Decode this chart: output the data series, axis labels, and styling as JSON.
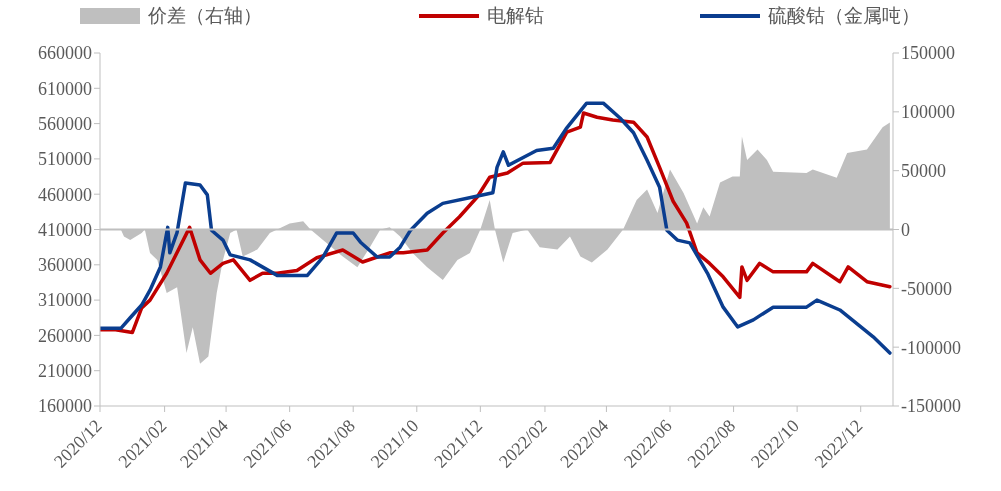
{
  "chart_data": {
    "type": "line",
    "legend": "top",
    "xlim": [
      "2020-12-01",
      "2023-01-01"
    ],
    "xticks": [
      {
        "value": "2020-12-01",
        "label": "2020/12"
      },
      {
        "value": "2021-02-01",
        "label": "2021/02"
      },
      {
        "value": "2021-04-01",
        "label": "2021/04"
      },
      {
        "value": "2021-06-01",
        "label": "2021/06"
      },
      {
        "value": "2021-08-01",
        "label": "2021/08"
      },
      {
        "value": "2021-10-01",
        "label": "2021/10"
      },
      {
        "value": "2021-12-01",
        "label": "2021/12"
      },
      {
        "value": "2022-02-01",
        "label": "2022/02"
      },
      {
        "value": "2022-04-01",
        "label": "2022/04"
      },
      {
        "value": "2022-06-01",
        "label": "2022/06"
      },
      {
        "value": "2022-08-01",
        "label": "2022/08"
      },
      {
        "value": "2022-10-01",
        "label": "2022/10"
      },
      {
        "value": "2022-12-01",
        "label": "2022/12"
      }
    ],
    "ylim": [
      160000,
      660000
    ],
    "yticks": [
      160000,
      210000,
      260000,
      310000,
      360000,
      410000,
      460000,
      510000,
      560000,
      610000,
      660000
    ],
    "y2lim": [
      -150000,
      150000
    ],
    "y2ticks": [
      -150000,
      -100000,
      -50000,
      0,
      50000,
      100000,
      150000
    ],
    "ref_lines": [
      {
        "axis": "y2",
        "value": 0,
        "color": "#bfbfbf"
      }
    ],
    "series": [
      {
        "name": "价差（右轴）",
        "type": "area",
        "axis": "y2",
        "color": "#bfbfbf",
        "x": [
          "2020-12-01",
          "2020-12-21",
          "2020-12-24",
          "2020-12-30",
          "2021-01-10",
          "2021-01-13",
          "2021-01-18",
          "2021-01-25",
          "2021-02-03",
          "2021-02-13",
          "2021-02-22",
          "2021-02-28",
          "2021-03-07",
          "2021-03-15",
          "2021-03-23",
          "2021-03-29",
          "2021-04-05",
          "2021-04-11",
          "2021-04-17",
          "2021-05-01",
          "2021-05-13",
          "2021-05-20",
          "2021-06-01",
          "2021-06-14",
          "2021-06-21",
          "2021-07-03",
          "2021-07-22",
          "2021-08-05",
          "2021-08-17",
          "2021-08-27",
          "2021-09-05",
          "2021-09-15",
          "2021-09-27",
          "2021-10-11",
          "2021-10-26",
          "2021-11-09",
          "2021-11-21",
          "2021-12-01",
          "2021-12-10",
          "2021-12-15",
          "2021-12-23",
          "2022-01-01",
          "2022-01-15",
          "2022-01-27",
          "2022-02-13",
          "2022-02-25",
          "2022-03-07",
          "2022-03-18",
          "2022-04-02",
          "2022-04-17",
          "2022-04-30",
          "2022-05-10",
          "2022-05-20",
          "2022-06-01",
          "2022-06-14",
          "2022-06-27",
          "2022-07-03",
          "2022-07-09",
          "2022-07-19",
          "2022-07-31",
          "2022-08-07",
          "2022-08-09",
          "2022-08-14",
          "2022-08-24",
          "2022-09-02",
          "2022-09-08",
          "2022-10-10",
          "2022-10-16",
          "2022-11-08",
          "2022-11-18",
          "2022-12-07",
          "2022-12-22",
          "2022-12-29"
        ],
        "values": [
          0,
          0,
          -6000,
          -9000,
          -3000,
          0,
          -20000,
          -26000,
          -54000,
          -49000,
          -105000,
          -83000,
          -114000,
          -108000,
          -54000,
          -26000,
          -3000,
          0,
          -23000,
          -17000,
          -3000,
          0,
          5000,
          7000,
          0,
          -9000,
          -23000,
          -32000,
          -15000,
          0,
          2000,
          -6000,
          -20000,
          -32000,
          -43000,
          -26000,
          -20000,
          0,
          25000,
          0,
          -28000,
          -3000,
          0,
          -15000,
          -17000,
          -6000,
          -23000,
          -28000,
          -17000,
          0,
          25000,
          34000,
          14000,
          51000,
          31000,
          5000,
          19000,
          11000,
          40000,
          45000,
          45000,
          79000,
          59000,
          68000,
          59000,
          49000,
          48000,
          51000,
          44000,
          65000,
          68000,
          87000,
          91000
        ]
      },
      {
        "name": "电解钴",
        "color": "#c00000",
        "x": [
          "2020-12-01",
          "2020-12-16",
          "2021-01-01",
          "2021-01-10",
          "2021-01-18",
          "2021-02-03",
          "2021-02-25",
          "2021-03-07",
          "2021-03-17",
          "2021-03-29",
          "2021-04-08",
          "2021-04-24",
          "2021-05-06",
          "2021-05-20",
          "2021-06-08",
          "2021-06-27",
          "2021-07-22",
          "2021-08-10",
          "2021-09-05",
          "2021-09-18",
          "2021-10-11",
          "2021-10-26",
          "2021-11-11",
          "2021-11-28",
          "2021-12-10",
          "2021-12-27",
          "2022-01-11",
          "2022-02-06",
          "2022-02-22",
          "2022-03-07",
          "2022-03-10",
          "2022-03-23",
          "2022-04-07",
          "2022-04-27",
          "2022-05-10",
          "2022-05-22",
          "2022-06-04",
          "2022-06-17",
          "2022-06-27",
          "2022-07-09",
          "2022-07-22",
          "2022-08-07",
          "2022-08-09",
          "2022-08-14",
          "2022-08-26",
          "2022-09-08",
          "2022-10-10",
          "2022-10-16",
          "2022-11-11",
          "2022-11-19",
          "2022-12-07",
          "2022-12-29"
        ],
        "values": [
          268000,
          268000,
          264000,
          299000,
          310000,
          348000,
          413000,
          367000,
          348000,
          362000,
          367000,
          338000,
          348000,
          348000,
          352000,
          370000,
          381000,
          364000,
          377000,
          377000,
          381000,
          405000,
          428000,
          456000,
          484000,
          490000,
          504000,
          505000,
          548000,
          555000,
          575000,
          569000,
          565000,
          562000,
          541000,
          498000,
          450000,
          419000,
          377000,
          362000,
          343000,
          314000,
          357000,
          338000,
          362000,
          350000,
          350000,
          362000,
          336000,
          357000,
          336000,
          329000
        ]
      },
      {
        "name": "硫酸钴（金属吨）",
        "color": "#0a3d8f",
        "x": [
          "2020-12-01",
          "2020-12-21",
          "2020-12-30",
          "2021-01-10",
          "2021-01-18",
          "2021-01-28",
          "2021-02-04",
          "2021-02-06",
          "2021-02-13",
          "2021-02-21",
          "2021-03-07",
          "2021-03-14",
          "2021-03-18",
          "2021-03-29",
          "2021-04-05",
          "2021-04-24",
          "2021-05-20",
          "2021-06-18",
          "2021-07-03",
          "2021-07-16",
          "2021-08-01",
          "2021-08-08",
          "2021-08-24",
          "2021-09-05",
          "2021-09-15",
          "2021-09-25",
          "2021-10-11",
          "2021-10-26",
          "2021-11-24",
          "2021-12-13",
          "2021-12-17",
          "2021-12-23",
          "2021-12-28",
          "2022-01-24",
          "2022-02-09",
          "2022-02-22",
          "2022-03-13",
          "2022-03-29",
          "2022-04-14",
          "2022-04-27",
          "2022-05-10",
          "2022-05-22",
          "2022-05-29",
          "2022-06-08",
          "2022-06-20",
          "2022-07-07",
          "2022-07-22",
          "2022-08-05",
          "2022-08-20",
          "2022-09-08",
          "2022-10-10",
          "2022-10-20",
          "2022-11-11",
          "2022-12-13",
          "2022-12-29"
        ],
        "values": [
          270000,
          270000,
          285000,
          303000,
          324000,
          357000,
          413000,
          377000,
          406000,
          476000,
          473000,
          459000,
          409000,
          395000,
          374000,
          367000,
          345000,
          345000,
          371000,
          405000,
          405000,
          392000,
          371000,
          371000,
          385000,
          409000,
          433000,
          447000,
          456000,
          462000,
          498000,
          520000,
          501000,
          522000,
          525000,
          554000,
          589000,
          589000,
          568000,
          547000,
          508000,
          470000,
          409000,
          395000,
          391000,
          348000,
          300000,
          272000,
          282000,
          300000,
          300000,
          310000,
          296000,
          258000,
          235000
        ]
      }
    ]
  }
}
